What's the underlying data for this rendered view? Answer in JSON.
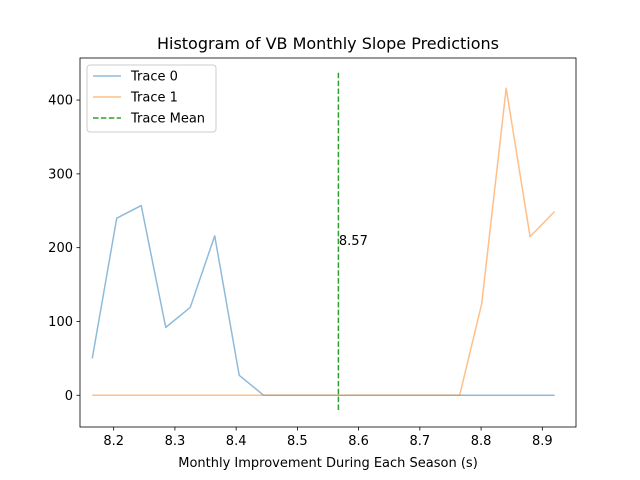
{
  "chart_data": {
    "type": "line",
    "title": "Histogram of VB Monthly Slope Predictions",
    "xlabel": "Monthly Improvement During Each Season (s)",
    "ylabel": "",
    "xlim": [
      8.145,
      8.955
    ],
    "ylim": [
      -43,
      457
    ],
    "x_ticks": [
      8.2,
      8.3,
      8.4,
      8.5,
      8.6,
      8.7,
      8.8,
      8.9
    ],
    "x_tick_labels": [
      "8.2",
      "8.3",
      "8.4",
      "8.5",
      "8.6",
      "8.7",
      "8.8",
      "8.9"
    ],
    "y_ticks": [
      0,
      100,
      200,
      300,
      400
    ],
    "y_tick_labels": [
      "0",
      "100",
      "200",
      "300",
      "400"
    ],
    "grid": false,
    "legend_position": "top-left",
    "series": [
      {
        "name": "Trace 0",
        "color": "#1f77b4",
        "alpha": 0.5,
        "x": [
          8.165,
          8.205,
          8.245,
          8.285,
          8.325,
          8.365,
          8.405,
          8.445,
          8.485,
          8.525,
          8.565,
          8.605,
          8.645,
          8.685,
          8.725,
          8.765,
          8.805,
          8.845,
          8.885,
          8.92
        ],
        "values": [
          50,
          240,
          257,
          92,
          119,
          216,
          27,
          0,
          0,
          0,
          0,
          0,
          0,
          0,
          0,
          0,
          0,
          0,
          0,
          0
        ]
      },
      {
        "name": "Trace 1",
        "color": "#ff7f0e",
        "alpha": 0.5,
        "x": [
          8.165,
          8.205,
          8.245,
          8.285,
          8.325,
          8.365,
          8.405,
          8.445,
          8.485,
          8.525,
          8.565,
          8.605,
          8.645,
          8.685,
          8.725,
          8.765,
          8.801,
          8.841,
          8.88,
          8.92
        ],
        "values": [
          0,
          0,
          0,
          0,
          0,
          0,
          0,
          0,
          0,
          0,
          0,
          0,
          0,
          0,
          0,
          0,
          124,
          416,
          215,
          249
        ]
      }
    ],
    "mean_line": {
      "name": "Trace Mean",
      "x": 8.567,
      "y_range": [
        -20,
        437
      ],
      "color": "#2ca02c",
      "style": "dashed",
      "label": "8.57",
      "label_y": 210
    }
  }
}
